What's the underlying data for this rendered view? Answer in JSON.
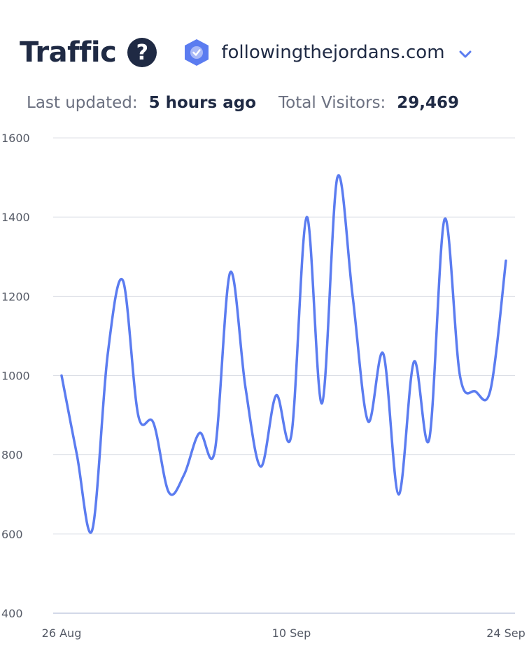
{
  "header": {
    "title": "Traffic",
    "help_icon": "question-circle-icon",
    "site_badge_icon": "verified-badge-icon",
    "site_name": "followingthejordans.com",
    "dropdown_icon": "chevron-down-icon"
  },
  "meta": {
    "last_updated_label": "Last updated:",
    "last_updated_value": "5 hours ago",
    "total_visitors_label": "Total Visitors:",
    "total_visitors_value": "29,469"
  },
  "colors": {
    "line": "#5b7cf0",
    "grid": "#dcdfe6",
    "title": "#1f2a44",
    "badge": "#5b7cf0"
  },
  "chart_data": {
    "type": "line",
    "ylim": [
      400,
      1600
    ],
    "y_ticks": [
      "1600",
      "1400",
      "1200",
      "1000",
      "800",
      "600",
      "400"
    ],
    "x_tick_labels": [
      "26 Aug",
      "10 Sep",
      "24 Sep"
    ],
    "x_tick_indices": [
      0,
      15,
      29
    ],
    "grid": true,
    "series": [
      {
        "values": [
          1000,
          800,
          610,
          1050,
          1240,
          900,
          880,
          705,
          750,
          855,
          810,
          1260,
          970,
          770,
          950,
          850,
          1400,
          930,
          1500,
          1200,
          885,
          1055,
          700,
          1035,
          840,
          1395,
          1000,
          960,
          965,
          1290
        ]
      }
    ]
  }
}
